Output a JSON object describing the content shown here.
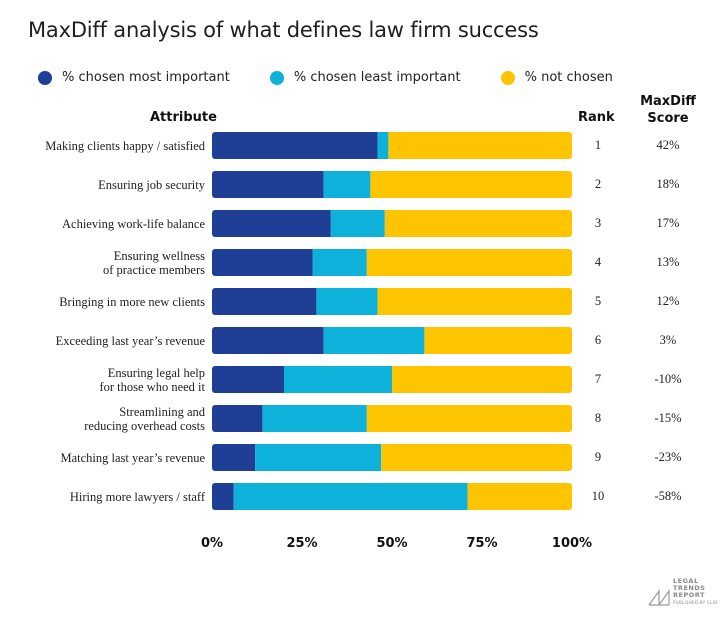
{
  "title": "MaxDiff analysis of what defines law firm success",
  "legend": [
    {
      "label": "% chosen most important",
      "color": "#1f3f97"
    },
    {
      "label": "% chosen least important",
      "color": "#0eb1d9"
    },
    {
      "label": "% not chosen",
      "color": "#fdc500"
    }
  ],
  "headers": {
    "attribute": "Attribute",
    "rank": "Rank",
    "score_line1": "MaxDiff",
    "score_line2": "Score"
  },
  "logo": {
    "line1": "LEGAL",
    "line2": "TRENDS",
    "line3": "REPORT",
    "line4": "PUBLISHED BY CLIO"
  },
  "chart_data": {
    "type": "bar",
    "orientation": "horizontal",
    "stacked": true,
    "title": "MaxDiff analysis of what defines law firm success",
    "xlim": [
      0,
      100
    ],
    "x_ticks": [
      "0%",
      "25%",
      "50%",
      "75%",
      "100%"
    ],
    "legend_position": "top-left",
    "categories": [
      "Making clients happy / satisfied",
      "Ensuring job security",
      "Achieving work-life balance",
      "Ensuring wellness of practice members",
      "Bringing in more new clients",
      "Exceeding last year's revenue",
      "Ensuring legal help for those who need it",
      "Streamlining and reducing overhead costs",
      "Matching last year's revenue",
      "Hiring more lawyers / staff"
    ],
    "category_lines": [
      [
        "Making clients happy / satisfied"
      ],
      [
        "Ensuring job security"
      ],
      [
        "Achieving work-life balance"
      ],
      [
        "Ensuring wellness",
        "of practice members"
      ],
      [
        "Bringing in more new clients"
      ],
      [
        "Exceeding last year’s revenue"
      ],
      [
        "Ensuring legal help",
        "for those who need it"
      ],
      [
        "Streamlining and",
        "reducing overhead costs"
      ],
      [
        "Matching last year’s revenue"
      ],
      [
        "Hiring more lawyers / staff"
      ]
    ],
    "series": [
      {
        "name": "% chosen most important",
        "color": "#1f3f97",
        "values": [
          46,
          31,
          33,
          28,
          29,
          31,
          20,
          14,
          12,
          6
        ]
      },
      {
        "name": "% chosen least important",
        "color": "#0eb1d9",
        "values": [
          3,
          13,
          15,
          15,
          17,
          28,
          30,
          29,
          35,
          65
        ]
      },
      {
        "name": "% not chosen",
        "color": "#fdc500",
        "values": [
          51,
          56,
          52,
          57,
          54,
          41,
          50,
          57,
          53,
          29
        ]
      }
    ],
    "rank": [
      "1",
      "2",
      "3",
      "4",
      "5",
      "6",
      "7",
      "8",
      "9",
      "10"
    ],
    "maxdiff_score": [
      "42%",
      "18%",
      "17%",
      "13%",
      "12%",
      "3%",
      "-10%",
      "-15%",
      "-23%",
      "-58%"
    ]
  }
}
